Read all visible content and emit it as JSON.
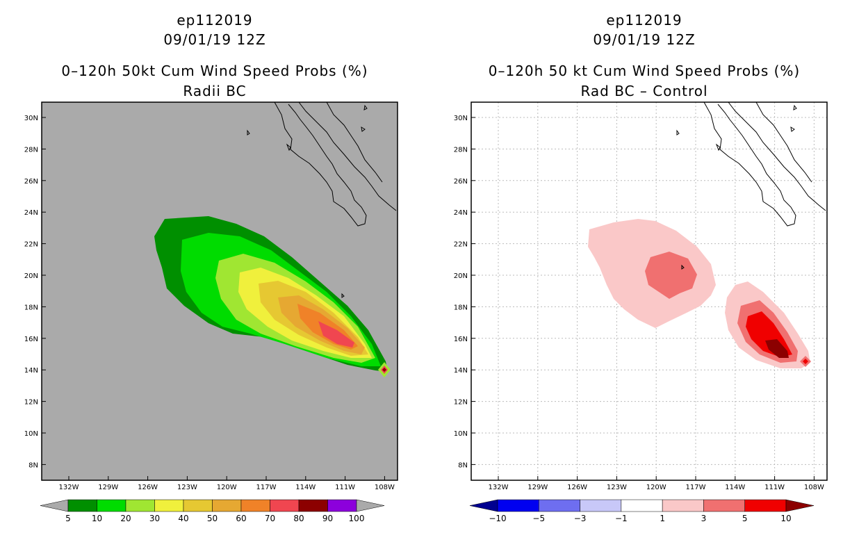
{
  "left_panel": {
    "storm_id": "ep112019",
    "datetime": "09/01/19 12Z",
    "title": "0–120h 50kt Cum Wind Speed Probs (%)",
    "subtitle": "Radii BC",
    "colorbar": {
      "labels": [
        "5",
        "10",
        "20",
        "30",
        "40",
        "50",
        "60",
        "70",
        "80",
        "90",
        "100"
      ],
      "colors": [
        "#aaaaaa",
        "#008f00",
        "#00dc00",
        "#a0e632",
        "#f0f03c",
        "#e6c832",
        "#e6a832",
        "#f08228",
        "#f04650",
        "#8c0000",
        "#8c00dc",
        "#aaaaaa"
      ]
    }
  },
  "right_panel": {
    "storm_id": "ep112019",
    "datetime": "09/01/19 12Z",
    "title": "0–120h 50 kt Cum Wind Speed Probs (%)",
    "subtitle": "Rad BC – Control",
    "colorbar": {
      "labels": [
        "−10",
        "−5",
        "−3",
        "−1",
        "1",
        "3",
        "5",
        "10"
      ],
      "colors": [
        "#000090",
        "#0000f0",
        "#6e6ef0",
        "#c8c8f8",
        "#ffffff",
        "#fac8c8",
        "#f07070",
        "#f00000",
        "#8c0000"
      ]
    }
  },
  "map_axes": {
    "lat_labels": [
      "30N",
      "28N",
      "26N",
      "24N",
      "22N",
      "20N",
      "18N",
      "16N",
      "14N",
      "12N",
      "10N",
      "8N"
    ],
    "lon_labels": [
      "132W",
      "129W",
      "126W",
      "123W",
      "120W",
      "117W",
      "114W",
      "111W",
      "108W"
    ]
  },
  "colors": {
    "background_gray": "#aaaaaa",
    "coastline": "#000000"
  }
}
